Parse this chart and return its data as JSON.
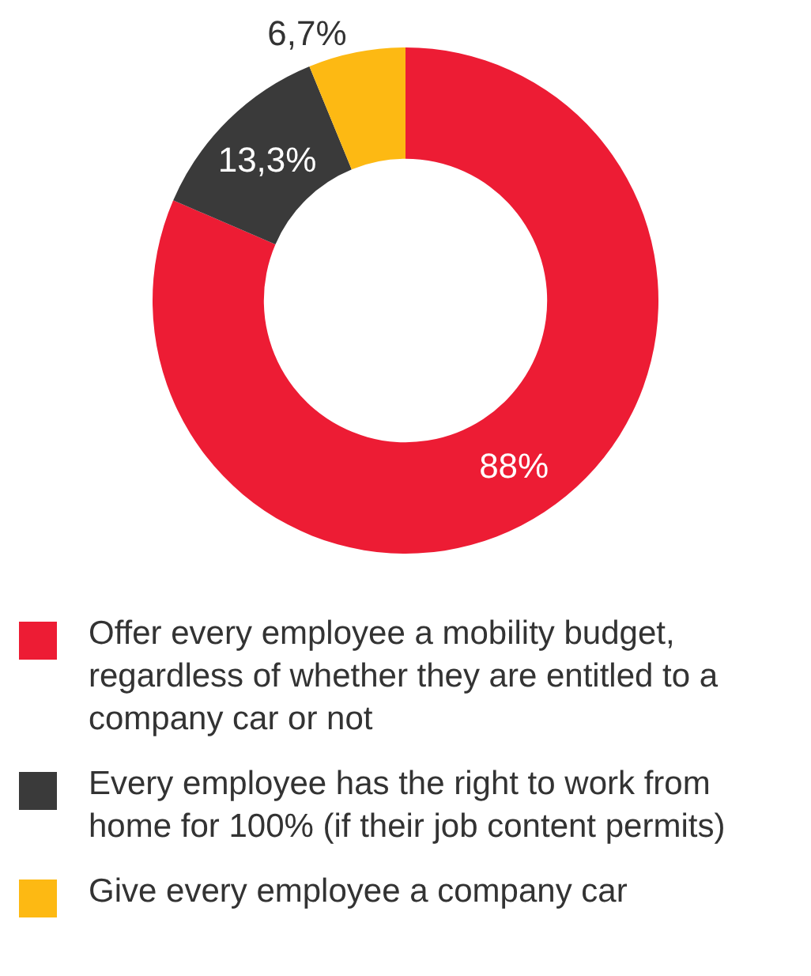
{
  "chart_data": {
    "type": "donut",
    "categories": [
      "Offer every employee a mobility budget, regardless of whether they are entitled to a company car or not",
      "Every employee has the right to work from home for 100% (if their job content permits)",
      "Give every employee a company car"
    ],
    "values": [
      88,
      13.3,
      6.7
    ],
    "colors": [
      "#ed1c34",
      "#3a3a3a",
      "#fdb913"
    ],
    "value_labels": [
      "88%",
      "13,3%",
      "6,7%"
    ],
    "legend": "bottom"
  }
}
